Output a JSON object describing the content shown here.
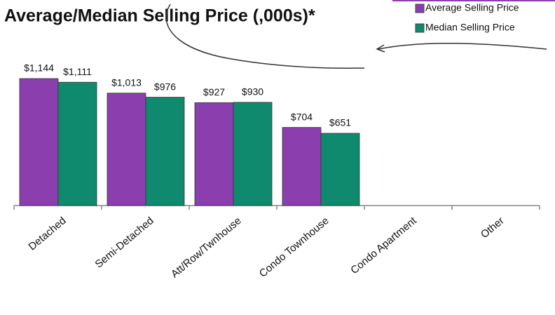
{
  "chart_data": {
    "type": "bar",
    "title": "Average/Median Selling Price (,000s)*",
    "categories": [
      "Detached",
      "Semi-Detached",
      "Att/Row/Twnhouse",
      "Condo Townhouse",
      "Condo Apartment",
      "Other"
    ],
    "series": [
      {
        "name": "Average Selling Price",
        "color": "#8b3fae",
        "values": [
          1144,
          1013,
          927,
          704,
          null,
          null
        ],
        "value_labels": [
          "$1,144",
          "$1,013",
          "$927",
          "$704",
          null,
          null
        ]
      },
      {
        "name": "Median Selling Price",
        "color": "#0f8a6e",
        "values": [
          1111,
          976,
          930,
          651,
          null,
          null
        ],
        "value_labels": [
          "$1,111",
          "$976",
          "$930",
          "$651",
          null,
          null
        ]
      }
    ],
    "legend": "top-right"
  }
}
